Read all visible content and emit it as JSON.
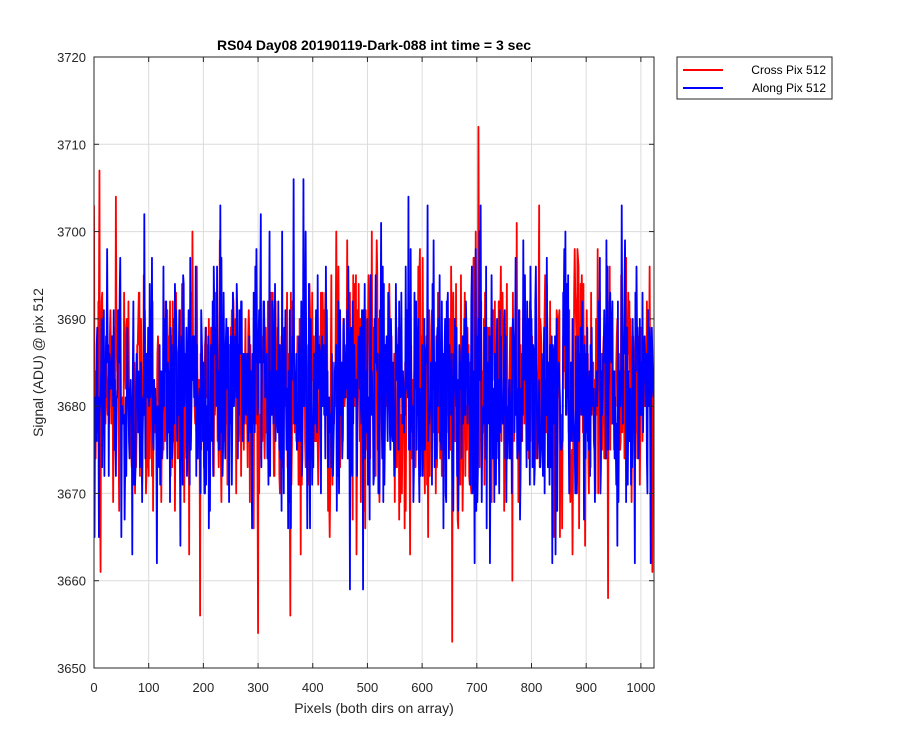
{
  "chart_data": {
    "type": "line",
    "title": "RS04 Day08 20190119-Dark-088 int time = 3 sec",
    "xlabel": "Pixels (both dirs on array)",
    "ylabel": "Signal (ADU) @ pix 512",
    "xlim": [
      0,
      1024
    ],
    "ylim": [
      3650,
      3720
    ],
    "xticks": [
      0,
      100,
      200,
      300,
      400,
      500,
      600,
      700,
      800,
      900,
      1000
    ],
    "yticks": [
      3650,
      3660,
      3670,
      3680,
      3690,
      3700,
      3710,
      3720
    ],
    "grid": true,
    "legend_position": "outside-top-right",
    "series_style": {
      "cross": {
        "color": "#ff0000"
      },
      "along": {
        "color": "#0000ff"
      }
    },
    "series": [
      {
        "name": "Cross Pix 512",
        "color": "#ff0000",
        "noise_summary": {
          "mean": 3682,
          "min": 3653,
          "max": 3712,
          "n_points": 1024
        },
        "notable_points": [
          {
            "x": 10,
            "y": 3707
          },
          {
            "x": 40,
            "y": 3704
          },
          {
            "x": 300,
            "y": 3654
          },
          {
            "x": 655,
            "y": 3653
          },
          {
            "x": 703,
            "y": 3712
          },
          {
            "x": 940,
            "y": 3658
          },
          {
            "x": 12,
            "y": 3661
          },
          {
            "x": 180,
            "y": 3700
          }
        ]
      },
      {
        "name": "Along Pix 512",
        "color": "#0000ff",
        "noise_summary": {
          "mean": 3682,
          "min": 3659,
          "max": 3706,
          "n_points": 1024
        },
        "notable_points": [
          {
            "x": 365,
            "y": 3706
          },
          {
            "x": 383,
            "y": 3706
          },
          {
            "x": 468,
            "y": 3659
          },
          {
            "x": 492,
            "y": 3659
          },
          {
            "x": 575,
            "y": 3704
          },
          {
            "x": 305,
            "y": 3702
          },
          {
            "x": 965,
            "y": 3703
          },
          {
            "x": 70,
            "y": 3663
          }
        ]
      }
    ]
  }
}
